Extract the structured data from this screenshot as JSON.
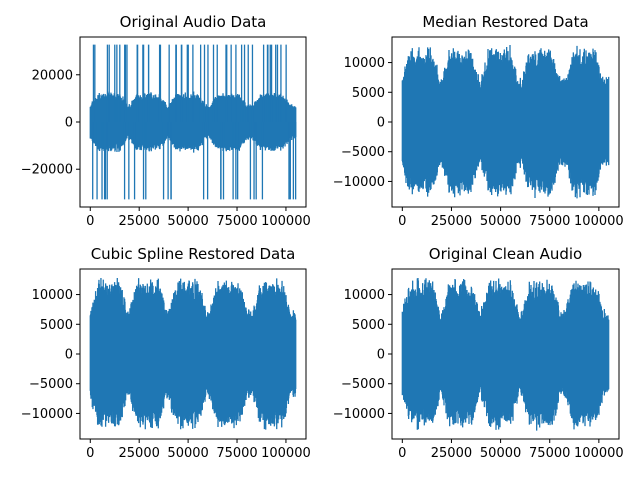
{
  "chart_data": [
    {
      "type": "line",
      "title": "Original Audio Data",
      "xlabel": "",
      "ylabel": "",
      "xlim": [
        -5250,
        110250
      ],
      "ylim": [
        -36000,
        36000
      ],
      "xticks": [
        0,
        25000,
        50000,
        75000,
        100000
      ],
      "yticks": [
        -20000,
        0,
        20000
      ],
      "xtick_labels": [
        "0",
        "25000",
        "50000",
        "75000",
        "100000"
      ],
      "ytick_labels": [
        "−20000",
        "0",
        "20000"
      ],
      "grid": false,
      "color": "#1f77b4",
      "n_samples": 105000,
      "envelope_max": 13000,
      "clicks": {
        "count": 80,
        "min": -32768,
        "max": 32767
      },
      "segment_starts": [
        0,
        20000,
        40000,
        61000,
        83000
      ],
      "segment_period": 21000
    },
    {
      "type": "line",
      "title": "Median Restored Data",
      "xlabel": "",
      "ylabel": "",
      "xlim": [
        -5250,
        110250
      ],
      "ylim": [
        -14300,
        14300
      ],
      "xticks": [
        0,
        25000,
        50000,
        75000,
        100000
      ],
      "yticks": [
        -10000,
        -5000,
        0,
        5000,
        10000
      ],
      "xtick_labels": [
        "0",
        "25000",
        "50000",
        "75000",
        "100000"
      ],
      "ytick_labels": [
        "−10000",
        "−5000",
        "0",
        "5000",
        "10000"
      ],
      "grid": false,
      "color": "#1f77b4",
      "n_samples": 105000,
      "envelope_max": 13000,
      "segment_starts": [
        0,
        20000,
        40000,
        61000,
        83000
      ],
      "segment_period": 21000
    },
    {
      "type": "line",
      "title": "Cubic Spline Restored Data",
      "xlabel": "",
      "ylabel": "",
      "xlim": [
        -5250,
        110250
      ],
      "ylim": [
        -14300,
        14300
      ],
      "xticks": [
        0,
        25000,
        50000,
        75000,
        100000
      ],
      "yticks": [
        -10000,
        -5000,
        0,
        5000,
        10000
      ],
      "xtick_labels": [
        "0",
        "25000",
        "50000",
        "75000",
        "100000"
      ],
      "ytick_labels": [
        "−10000",
        "−5000",
        "0",
        "5000",
        "10000"
      ],
      "grid": false,
      "color": "#1f77b4",
      "n_samples": 105000,
      "envelope_max": 13000,
      "segment_starts": [
        0,
        20000,
        40000,
        61000,
        83000
      ],
      "segment_period": 21000
    },
    {
      "type": "line",
      "title": "Original Clean Audio",
      "xlabel": "",
      "ylabel": "",
      "xlim": [
        -5250,
        110250
      ],
      "ylim": [
        -14300,
        14300
      ],
      "xticks": [
        0,
        25000,
        50000,
        75000,
        100000
      ],
      "yticks": [
        -10000,
        -5000,
        0,
        5000,
        10000
      ],
      "xtick_labels": [
        "0",
        "25000",
        "50000",
        "75000",
        "100000"
      ],
      "ytick_labels": [
        "−10000",
        "−5000",
        "0",
        "5000",
        "10000"
      ],
      "grid": false,
      "color": "#1f77b4",
      "n_samples": 105000,
      "envelope_max": 13000,
      "segment_starts": [
        0,
        20000,
        40000,
        61000,
        83000
      ],
      "segment_period": 21000
    }
  ]
}
